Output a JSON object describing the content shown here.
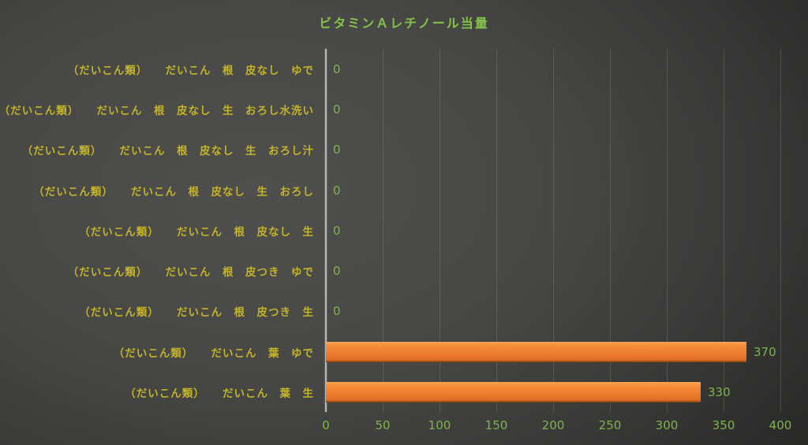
{
  "chart_data": {
    "type": "bar",
    "orientation": "horizontal",
    "title": "ビタミンＡレチノール当量",
    "categories": [
      "（だいこん類）　　だいこん　根　皮なし　ゆで",
      "（だいこん類）　　だいこん　根　皮なし　生　おろし水洗い",
      "（だいこん類）　　だいこん　根　皮なし　生　おろし汁",
      "（だいこん類）　　だいこん　根　皮なし　生　おろし",
      "（だいこん類）　　だいこん　根　皮なし　生",
      "（だいこん類）　　だいこん　根　皮つき　ゆで",
      "（だいこん類）　　だいこん　根　皮つき　生",
      "（だいこん類）　　だいこん　葉　ゆで",
      "（だいこん類）　　だいこん　葉　生"
    ],
    "values": [
      0,
      0,
      0,
      0,
      0,
      0,
      0,
      370,
      330
    ],
    "value_labels": [
      "0",
      "0",
      "0",
      "0",
      "0",
      "0",
      "0",
      "370",
      "330"
    ],
    "xlabel": "",
    "ylabel": "",
    "xlim": [
      0,
      400
    ],
    "xticks": [
      0,
      50,
      100,
      150,
      200,
      250,
      300,
      350,
      400
    ],
    "grid": true,
    "legend": false
  },
  "colors": {
    "background_center": "#4f4f4d",
    "background_edge": "#222221",
    "title": "#84c24b",
    "category_label": "#c4b428",
    "value_label": "#7eb549",
    "tick_label": "#7eb549",
    "bar": "#ed7d31",
    "axis_line": "#b9b9b6",
    "gridline": "rgba(255,255,255,0.13)"
  }
}
